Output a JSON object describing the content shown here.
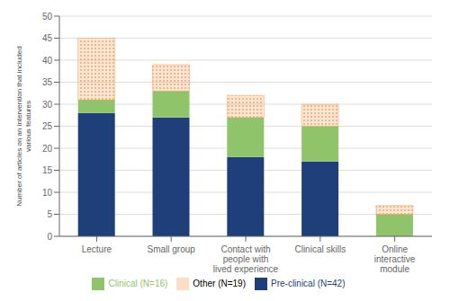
{
  "chart_data": {
    "type": "bar",
    "stacked": true,
    "grid": true,
    "legend": "bottom",
    "categories": [
      "Lecture",
      "Small group",
      "Contact with\npeople with\nlived experience",
      "Clinical skills",
      "Online\ninteractive\nmodule"
    ],
    "series": [
      {
        "name": "Pre-clinical (N=42)",
        "color": "#1F3F7A",
        "values": [
          28,
          27,
          18,
          17,
          0
        ]
      },
      {
        "name": "Clinical (N=16)",
        "color": "#90C46A",
        "values": [
          3,
          6,
          9,
          8,
          5
        ]
      },
      {
        "name": "Other (N=19)",
        "color": "#F5A05A",
        "values": [
          14,
          6,
          5,
          5,
          2
        ]
      }
    ],
    "ylabel": "Number of articles on an intervention that included\nvarious features",
    "ylim": [
      0,
      50
    ],
    "yticks": [
      0,
      5,
      10,
      15,
      20,
      25,
      30,
      35,
      40,
      45,
      50
    ]
  }
}
